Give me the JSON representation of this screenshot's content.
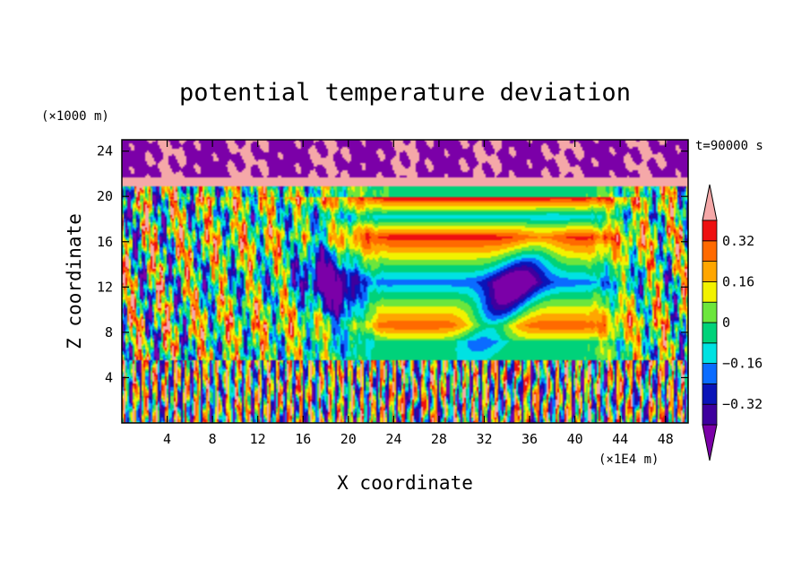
{
  "chart_data": {
    "type": "heatmap",
    "title": "potential temperature deviation",
    "time_label": "t=90000 s",
    "xlabel": "X coordinate",
    "ylabel": "Z coordinate",
    "x_unit": "(×1E4 m)",
    "y_unit": "(×1000 m)",
    "xlim": [
      0,
      50
    ],
    "ylim": [
      0,
      25
    ],
    "x_ticks": [
      4,
      8,
      12,
      16,
      20,
      24,
      28,
      32,
      36,
      40,
      44,
      48
    ],
    "y_ticks": [
      4,
      8,
      12,
      16,
      20,
      24
    ],
    "colorbar": {
      "levels": [
        -0.4,
        -0.32,
        -0.24,
        -0.16,
        -0.08,
        0,
        0.08,
        0.16,
        0.24,
        0.32,
        0.4
      ],
      "labels": [
        "0.32",
        "0.16",
        "0",
        "−0.16",
        "−0.32"
      ],
      "label_values": [
        0.32,
        0.16,
        0,
        -0.16,
        -0.32
      ],
      "colors": [
        "#7b00a8",
        "#3e009e",
        "#0a14b8",
        "#0a6cff",
        "#00e2e2",
        "#00d27a",
        "#6ce63c",
        "#f2f200",
        "#ffa600",
        "#ff6a00",
        "#ee1010",
        "#f5a8a8"
      ],
      "extend": "both"
    }
  }
}
